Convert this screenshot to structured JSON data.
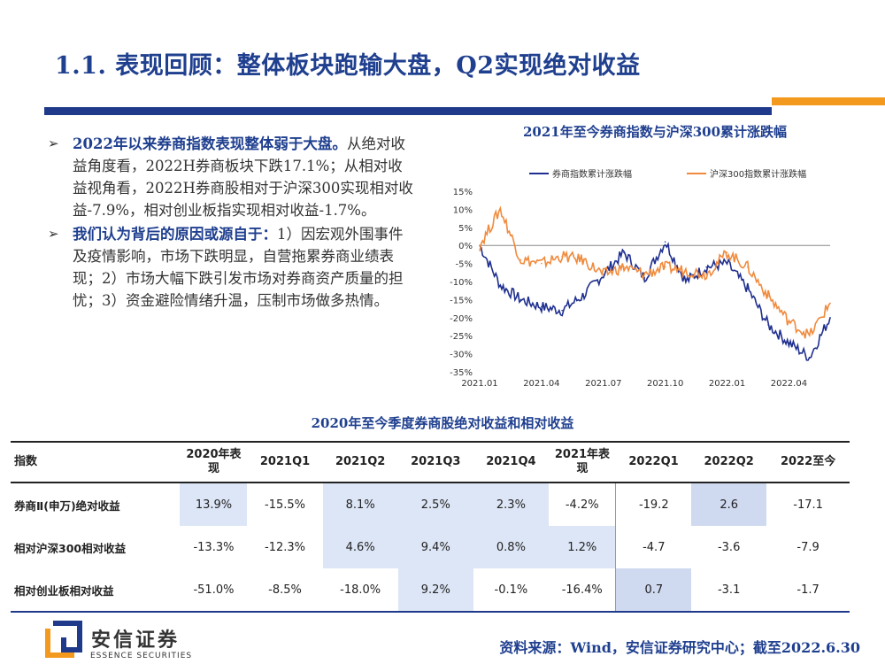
{
  "title": "1.1. 表现回顾：整体板块跑输大盘，Q2实现绝对收益",
  "bullets": [
    {
      "head": "2022年以来券商指数表现整体弱于大盘。",
      "body": "从绝对收益角度看，2022H券商板块下跌17.1%；从相对收益视角看，2022H券商股相对于沪深300实现相对收益-7.9%，相对创业板指实现相对收益-1.7%。"
    },
    {
      "head": "我们认为背后的原因或源自于：",
      "body": "1）因宏观外围事件及疫情影响，市场下跌明显，自营拖累券商业绩表现；2）市场大幅下跌引发市场对券商资产质量的担忧；3）资金避险情绪升温，压制市场做多热情。"
    }
  ],
  "chart_title": "2021年至今券商指数与沪深300累计涨跌幅",
  "chart_data": {
    "type": "line",
    "title": "2021年至今券商指数与沪深300累计涨跌幅",
    "x": [
      "2021.01",
      "2021.02",
      "2021.03",
      "2021.04",
      "2021.05",
      "2021.06",
      "2021.07",
      "2021.08",
      "2021.09",
      "2021.10",
      "2021.11",
      "2021.12",
      "2022.01",
      "2022.02",
      "2022.03",
      "2022.04",
      "2022.05",
      "2022.06"
    ],
    "xticks": [
      "2021.01",
      "2021.04",
      "2021.07",
      "2021.10",
      "2022.01",
      "2022.04"
    ],
    "ylim": [
      -35,
      15
    ],
    "yticks": [
      "15%",
      "10%",
      "5%",
      "0%",
      "-5%",
      "-10%",
      "-15%",
      "-20%",
      "-25%",
      "-30%",
      "-35%"
    ],
    "series": [
      {
        "name": "券商指数累计涨跌幅",
        "color": "#1f2f8f",
        "values": [
          0,
          -11,
          -15,
          -17,
          -18,
          -14,
          -8,
          -2,
          -9,
          1,
          -10,
          -6,
          -5,
          -12,
          -22,
          -27,
          -31,
          -20
        ]
      },
      {
        "name": "沪深300指数累计涨跌幅",
        "color": "#f08a3c",
        "values": [
          0,
          10,
          -4,
          -5,
          -3,
          -4,
          -8,
          -6,
          -8,
          -6,
          -7,
          -8,
          -2,
          -6,
          -14,
          -21,
          -25,
          -16
        ]
      }
    ]
  },
  "table_title": "2020年至今季度券商股绝对收益和相对收益",
  "table": {
    "headers": [
      "指数",
      "2020年表现",
      "2021Q1",
      "2021Q2",
      "2021Q3",
      "2021Q4",
      "2021年表现",
      "2022Q1",
      "2022Q2",
      "2022至今"
    ],
    "rows": [
      {
        "label": "券商Ⅱ(申万)绝对收益",
        "cells": [
          "13.9%",
          "-15.5%",
          "8.1%",
          "2.5%",
          "2.3%",
          "-4.2%",
          "-19.2",
          "2.6",
          "-17.1"
        ]
      },
      {
        "label": "相对沪深300相对收益",
        "cells": [
          "-13.3%",
          "-12.3%",
          "4.6%",
          "9.4%",
          "0.8%",
          "1.2%",
          "-4.7",
          "-3.6",
          "-7.9"
        ]
      },
      {
        "label": "相对创业板相对收益",
        "cells": [
          "-51.0%",
          "-8.5%",
          "-18.0%",
          "9.2%",
          "-0.1%",
          "-16.4%",
          "0.7",
          "-3.1",
          "-1.7"
        ]
      }
    ]
  },
  "logo": {
    "name": "安信证券",
    "sub": "ESSENCE SECURITIES"
  },
  "source": "资料来源：Wind，安信证券研究中心；截至2022.6.30",
  "colors": {
    "navy": "#1f3a8a",
    "orange": "#f39a1e",
    "highlight": "#dde6f6"
  }
}
